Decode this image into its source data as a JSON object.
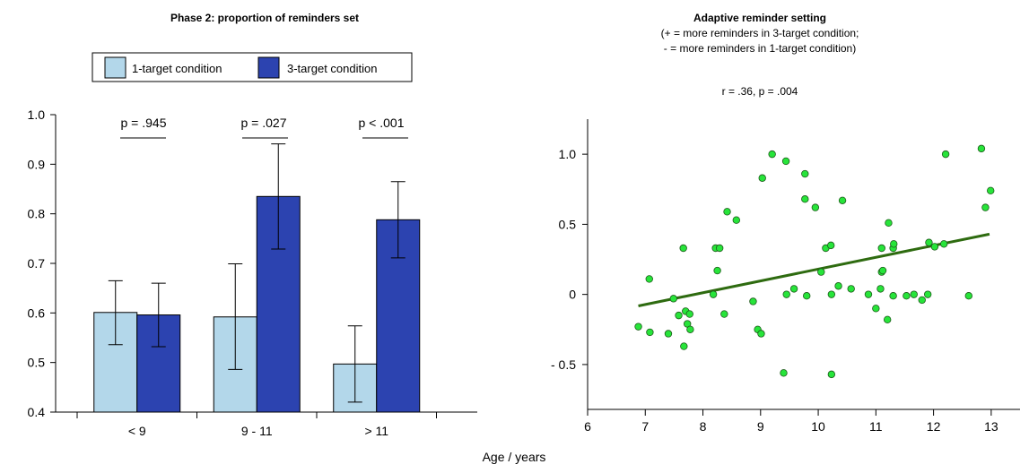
{
  "shared": {
    "xlabel": "Age / years"
  },
  "chart_data": [
    {
      "type": "bar",
      "title": "Phase 2: proportion of reminders set",
      "categories": [
        "< 9",
        "9 - 11",
        "> 11"
      ],
      "series": [
        {
          "name": "1-target condition",
          "color": "#b3d7ea",
          "values": [
            0.601,
            0.592,
            0.497
          ],
          "err_low": [
            0.536,
            0.486,
            0.42
          ],
          "err_high": [
            0.665,
            0.699,
            0.574
          ]
        },
        {
          "name": "3-target condition",
          "color": "#2c43b0",
          "values": [
            0.596,
            0.835,
            0.788
          ],
          "err_low": [
            0.532,
            0.729,
            0.711
          ],
          "err_high": [
            0.66,
            0.941,
            0.865
          ]
        }
      ],
      "ylim": [
        0.4,
        1.0
      ],
      "yticks": [
        "0.4",
        "0.5",
        "0.6",
        "0.7",
        "0.8",
        "0.9",
        "1.0"
      ],
      "annotations": [
        "p = .945",
        "p = .027",
        "p < .001"
      ],
      "legend_position": "top"
    },
    {
      "type": "scatter",
      "title": "Adaptive reminder setting",
      "subtitle": [
        "(+ = more reminders in 3-target condition;",
        "- = more reminders in 1-target condition)"
      ],
      "annotation": "r = .36, p = .004",
      "point_color": "#27e43a",
      "fit_color": "#2e6b10",
      "xlim": [
        6,
        13.5
      ],
      "ylim": [
        -0.82,
        1.25
      ],
      "xticks": [
        "6",
        "7",
        "8",
        "9",
        "10",
        "11",
        "12",
        "13"
      ],
      "yticks": [
        {
          "v": 1.0,
          "t": "1.0"
        },
        {
          "v": 0.5,
          "t": "0.5"
        },
        {
          "v": 0,
          "t": "0"
        },
        {
          "v": -0.5,
          "t": "- 0.5"
        }
      ],
      "fit": {
        "x": [
          6.88,
          12.97
        ],
        "y": [
          -0.082,
          0.43
        ]
      },
      "points": [
        [
          6.88,
          -0.23
        ],
        [
          7.07,
          0.11
        ],
        [
          7.08,
          -0.27
        ],
        [
          7.4,
          -0.28
        ],
        [
          7.49,
          -0.03
        ],
        [
          7.58,
          -0.15
        ],
        [
          7.66,
          0.33
        ],
        [
          7.67,
          -0.37
        ],
        [
          7.7,
          -0.12
        ],
        [
          7.73,
          -0.21
        ],
        [
          7.77,
          -0.14
        ],
        [
          7.78,
          -0.25
        ],
        [
          8.18,
          0.0
        ],
        [
          8.22,
          0.33
        ],
        [
          8.25,
          0.17
        ],
        [
          8.29,
          0.33
        ],
        [
          8.37,
          -0.14
        ],
        [
          8.42,
          0.59
        ],
        [
          8.58,
          0.53
        ],
        [
          8.87,
          -0.05
        ],
        [
          8.95,
          -0.25
        ],
        [
          9.01,
          -0.28
        ],
        [
          9.03,
          0.83
        ],
        [
          9.2,
          1.0
        ],
        [
          9.4,
          -0.56
        ],
        [
          9.44,
          0.95
        ],
        [
          9.45,
          0.0
        ],
        [
          9.58,
          0.04
        ],
        [
          9.77,
          0.86
        ],
        [
          9.77,
          0.68
        ],
        [
          9.8,
          -0.01
        ],
        [
          9.95,
          0.62
        ],
        [
          10.05,
          0.16
        ],
        [
          10.13,
          0.33
        ],
        [
          10.22,
          0.35
        ],
        [
          10.23,
          -0.57
        ],
        [
          10.23,
          0.0
        ],
        [
          10.35,
          0.06
        ],
        [
          10.42,
          0.67
        ],
        [
          10.57,
          0.04
        ],
        [
          10.87,
          0.0
        ],
        [
          11.0,
          -0.1
        ],
        [
          11.08,
          0.04
        ],
        [
          11.1,
          0.33
        ],
        [
          11.1,
          0.16
        ],
        [
          11.12,
          0.17
        ],
        [
          11.2,
          -0.18
        ],
        [
          11.22,
          0.51
        ],
        [
          11.3,
          0.33
        ],
        [
          11.31,
          0.36
        ],
        [
          11.3,
          -0.01
        ],
        [
          11.53,
          -0.01
        ],
        [
          11.66,
          0.0
        ],
        [
          11.8,
          -0.04
        ],
        [
          11.9,
          0.0
        ],
        [
          11.92,
          0.37
        ],
        [
          12.02,
          0.34
        ],
        [
          12.18,
          0.36
        ],
        [
          12.21,
          1.0
        ],
        [
          12.61,
          -0.01
        ],
        [
          12.83,
          1.04
        ],
        [
          12.9,
          0.62
        ],
        [
          12.99,
          0.74
        ]
      ]
    }
  ]
}
